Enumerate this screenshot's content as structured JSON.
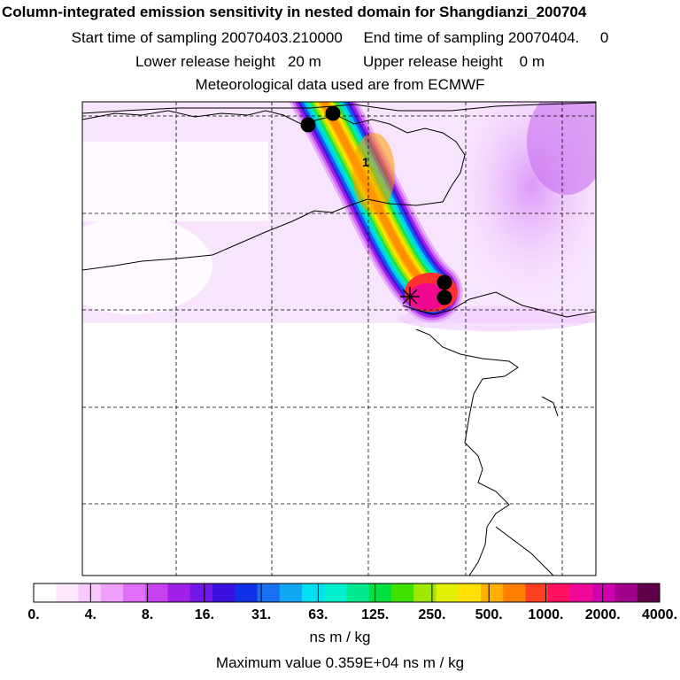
{
  "titles": {
    "line1": "Column-integrated emission sensitivity in nested domain for Shangdianzi_200704",
    "line2": "Start time of sampling 20070403.210000     End time of sampling 20070404.     0",
    "line3": "Lower release height   20 m          Upper release height    0 m",
    "line4": "Meteorological data used are from ECMWF"
  },
  "chart_data": {
    "type": "heatmap",
    "title": "Column-integrated emission sensitivity in nested domain for Shangdianzi_200704",
    "colorbar": {
      "label": "ns m / kg",
      "tick_labels": [
        "0.",
        "4.",
        "8.",
        "16.",
        "31.",
        "63.",
        "125.",
        "250.",
        "500.",
        "1000.",
        "2000.",
        "4000."
      ],
      "tick_values": [
        0,
        4,
        8,
        16,
        31,
        63,
        125,
        250,
        500,
        1000,
        2000,
        4000
      ],
      "colors": [
        "#ffffff",
        "#fde8ff",
        "#f9c8ff",
        "#f0a0fc",
        "#e070f8",
        "#c840f0",
        "#a020e8",
        "#7018e8",
        "#3a10e0",
        "#1030e8",
        "#1870f0",
        "#10a8f0",
        "#00e0f0",
        "#00f0d0",
        "#00e890",
        "#00e040",
        "#40e000",
        "#a0e800",
        "#e0f000",
        "#ffe000",
        "#ffb000",
        "#ff8000",
        "#ff4020",
        "#ff1060",
        "#f0089a",
        "#d000b0",
        "#a0008a",
        "#60004a"
      ]
    },
    "plume_max_label": "1",
    "maximum_value": 3590,
    "maximum_value_text": "Maximum value  0.359E+04 ns m / kg",
    "markers": [
      {
        "type": "dot"
      },
      {
        "type": "dot"
      },
      {
        "type": "dot"
      },
      {
        "type": "dot"
      },
      {
        "type": "release-site"
      }
    ]
  }
}
